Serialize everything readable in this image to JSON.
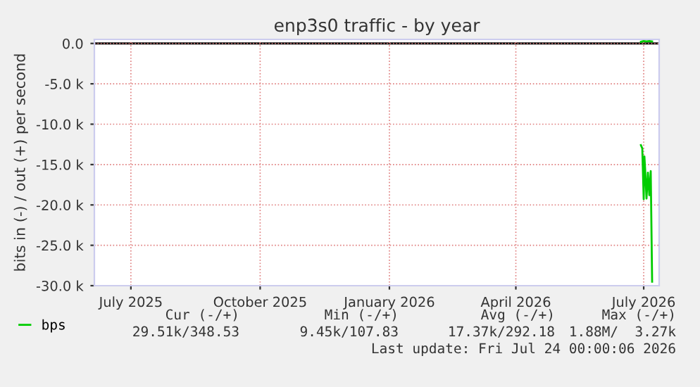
{
  "chart_data": {
    "type": "line",
    "title": "enp3s0 traffic - by year",
    "ylabel": "bits in (-) / out (+) per second",
    "series": [
      {
        "name": "bps",
        "color": "#00cc00",
        "x": [
          "2026-06-29",
          "2026-06-30",
          "2026-07-01",
          "2026-07-01T12:00",
          "2026-07-02",
          "2026-07-03",
          "2026-07-04",
          "2026-07-05",
          "2026-07-06",
          "2026-07-07"
        ],
        "values": [
          -12600,
          -13000,
          -19300,
          -14000,
          -15500,
          -19200,
          -16000,
          -18800,
          -15800,
          -29500
        ]
      },
      {
        "color": "#00cc00",
        "x": [
          "2026-06-29",
          "2026-07-01",
          "2026-07-03",
          "2026-07-05",
          "2026-07-07"
        ],
        "values": [
          200,
          300,
          250,
          300,
          250
        ]
      }
    ],
    "xlim": [
      "2025-06-05",
      "2026-07-12"
    ],
    "xticks": [
      {
        "value": "2025-07-01",
        "label": "July 2025"
      },
      {
        "value": "2025-10-01",
        "label": "October 2025"
      },
      {
        "value": "2026-01-01",
        "label": "January 2026"
      },
      {
        "value": "2026-04-01",
        "label": "April 2026"
      },
      {
        "value": "2026-07-01",
        "label": "July 2026"
      }
    ],
    "ylim": [
      -30000,
      500
    ],
    "yticks": [
      {
        "value": 0,
        "label": "0.0"
      },
      {
        "value": -5000,
        "label": "-5.0 k"
      },
      {
        "value": -10000,
        "label": "-10.0 k"
      },
      {
        "value": -15000,
        "label": "-15.0 k"
      },
      {
        "value": -20000,
        "label": "-20.0 k"
      },
      {
        "value": -25000,
        "label": "-25.0 k"
      },
      {
        "value": -30000,
        "label": "-30.0 k"
      }
    ],
    "ref_lines": [
      {
        "axis": "y",
        "value": 0,
        "color": "#000000"
      }
    ],
    "grid": true,
    "legend": "bottom",
    "annotations": [
      "Cur (-/+)",
      "Min (-/+)",
      "Avg (-/+)",
      "Max (-/+)",
      "29.51k/348.53",
      "9.45k/107.83",
      "17.37k/292.18",
      "1.88M/  3.27k",
      "Last update: Fri Jul 24 00:00:06 2026"
    ]
  }
}
